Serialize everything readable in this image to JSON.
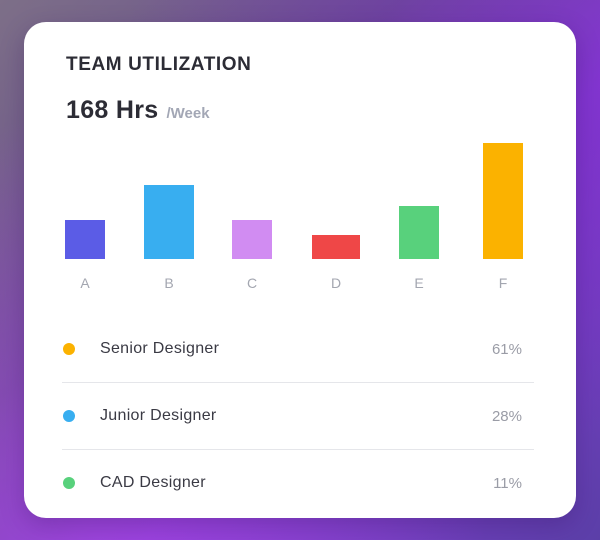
{
  "card": {
    "title": "TEAM UTILIZATION",
    "total_value": "168 Hrs",
    "total_unit": "/Week"
  },
  "chart_data": {
    "type": "bar",
    "categories": [
      "A",
      "B",
      "C",
      "D",
      "E",
      "F"
    ],
    "values": [
      39,
      74,
      39,
      24,
      53,
      116
    ],
    "colors": [
      "#5b5ce6",
      "#38aef0",
      "#d18cf2",
      "#ef4747",
      "#58d17c",
      "#fbb200"
    ],
    "ylim": [
      0,
      116
    ],
    "grid": false,
    "legend": "none"
  },
  "legend": [
    {
      "label": "Senior Designer",
      "value": "61%",
      "color": "#fbb200"
    },
    {
      "label": "Junior Designer",
      "value": "28%",
      "color": "#38aef0"
    },
    {
      "label": "CAD Designer",
      "value": "11%",
      "color": "#58d17c"
    }
  ]
}
